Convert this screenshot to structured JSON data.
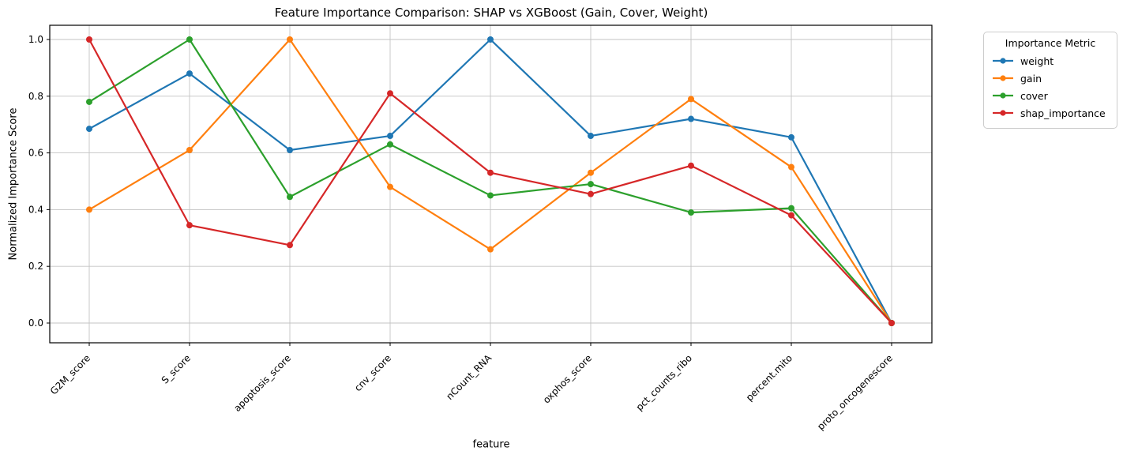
{
  "chart_data": {
    "type": "line",
    "title": "Feature Importance Comparison: SHAP vs XGBoost (Gain, Cover, Weight)",
    "xlabel": "feature",
    "ylabel": "Normalized Importance Score",
    "categories": [
      "G2M_score",
      "S_score",
      "apoptosis_score",
      "cnv_score",
      "nCount_RNA",
      "oxphos_score",
      "pct_counts_ribo",
      "percent.mito",
      "proto_oncogenescore"
    ],
    "series": [
      {
        "name": "weight",
        "color": "#1f77b4",
        "values": [
          0.685,
          0.88,
          0.61,
          0.66,
          1.0,
          0.66,
          0.72,
          0.655,
          0.0
        ]
      },
      {
        "name": "gain",
        "color": "#ff7f0e",
        "values": [
          0.4,
          0.61,
          1.0,
          0.48,
          0.26,
          0.53,
          0.79,
          0.55,
          0.0
        ]
      },
      {
        "name": "cover",
        "color": "#2ca02c",
        "values": [
          0.78,
          1.0,
          0.445,
          0.63,
          0.45,
          0.49,
          0.39,
          0.405,
          0.0
        ]
      },
      {
        "name": "shap_importance",
        "color": "#d62728",
        "values": [
          1.0,
          0.345,
          0.275,
          0.81,
          0.53,
          0.455,
          0.555,
          0.38,
          0.0
        ]
      }
    ],
    "ytick_labels": [
      "0.0",
      "0.2",
      "0.4",
      "0.6",
      "0.8",
      "1.0"
    ],
    "yticks": [
      0.0,
      0.2,
      0.4,
      0.6,
      0.8,
      1.0
    ],
    "ylim": [
      -0.07,
      1.05
    ],
    "grid": true,
    "marker": "o",
    "legend_title": "Importance Metric",
    "legend_position": "outside-right-top"
  },
  "style": {
    "grid_color": "#c3c3c3",
    "spine_color": "#000000",
    "tick_color": "#000000"
  }
}
